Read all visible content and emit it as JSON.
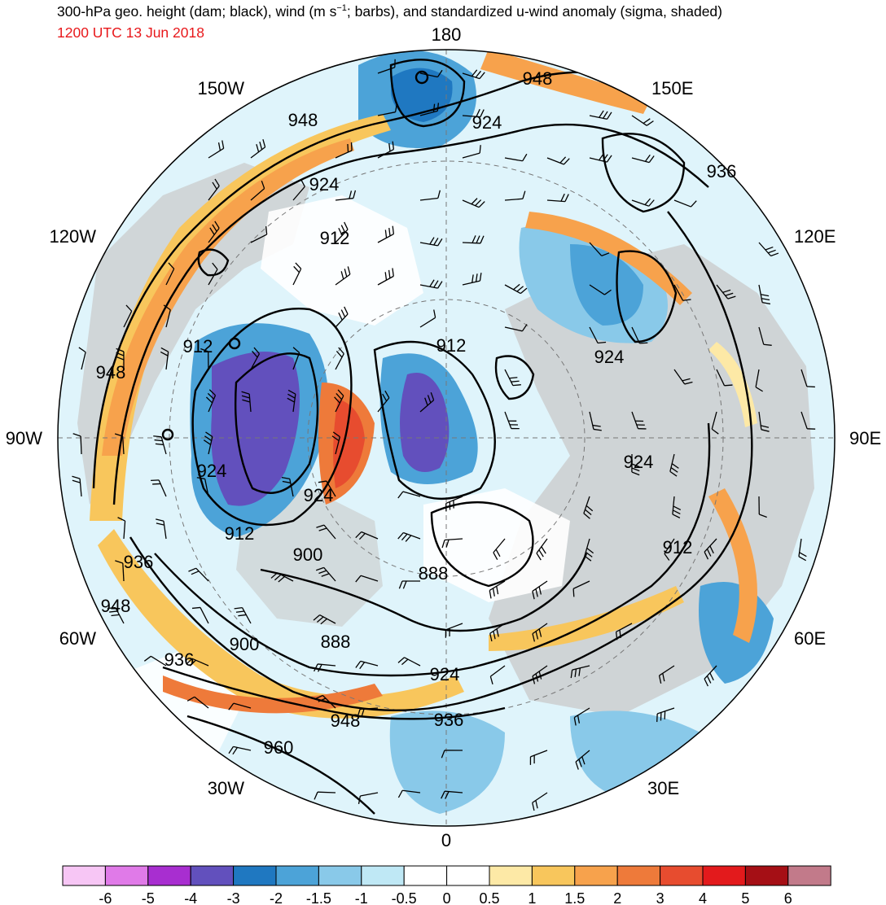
{
  "header": {
    "title_main": "300-hPa geo. height (dam; black), wind (m s",
    "title_sup": "−1",
    "title_rest": "; barbs), and standardized u-wind anomaly (sigma, shaded)",
    "time": "1200 UTC 13 Jun 2018"
  },
  "longitudes": [
    {
      "label": "180"
    },
    {
      "label": "150E"
    },
    {
      "label": "120E"
    },
    {
      "label": "90E"
    },
    {
      "label": "60E"
    },
    {
      "label": "30E"
    },
    {
      "label": "0"
    },
    {
      "label": "30W"
    },
    {
      "label": "60W"
    },
    {
      "label": "90W"
    },
    {
      "label": "120W"
    },
    {
      "label": "150W"
    }
  ],
  "contours": [
    {
      "label": "948"
    },
    {
      "label": "924"
    },
    {
      "label": "936"
    },
    {
      "label": "948"
    },
    {
      "label": "924"
    },
    {
      "label": "912"
    },
    {
      "label": "912"
    },
    {
      "label": "948"
    },
    {
      "label": "912"
    },
    {
      "label": "924"
    },
    {
      "label": "924"
    },
    {
      "label": "924"
    },
    {
      "label": "924"
    },
    {
      "label": "912"
    },
    {
      "label": "900"
    },
    {
      "label": "888"
    },
    {
      "label": "912"
    },
    {
      "label": "936"
    },
    {
      "label": "948"
    },
    {
      "label": "936"
    },
    {
      "label": "900"
    },
    {
      "label": "888"
    },
    {
      "label": "924"
    },
    {
      "label": "948"
    },
    {
      "label": "936"
    },
    {
      "label": "960"
    }
  ],
  "colorbar": {
    "colors": [
      "#f7c6f5",
      "#e07ae8",
      "#a82ed0",
      "#6250bd",
      "#1f78c1",
      "#4ca3d8",
      "#89c9e9",
      "#bfe8f5",
      "#ffffff",
      "#ffffff",
      "#fde9a6",
      "#f8c65c",
      "#f7a24c",
      "#ee7a3a",
      "#e74c2f",
      "#e31a1c",
      "#a50f15",
      "#c27a8a"
    ],
    "ticks": [
      "-6",
      "-5",
      "-4",
      "-3",
      "-2",
      "-1.5",
      "-1",
      "-0.5",
      "0",
      "0.5",
      "1",
      "1.5",
      "2",
      "3",
      "4",
      "5",
      "6"
    ]
  }
}
